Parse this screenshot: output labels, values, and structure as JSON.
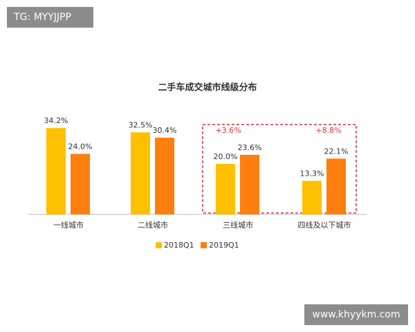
{
  "watermarks": [
    "TG: MYYJJPP",
    "www.khyykm.com"
  ],
  "chart_data": {
    "type": "bar",
    "title": "二手车成交城市线级分布",
    "categories": [
      "一线城市",
      "二线城市",
      "三线城市",
      "四线及以下城市"
    ],
    "series": [
      {
        "name": "2018Q1",
        "color": "#FFC000",
        "values": [
          34.2,
          32.5,
          20.0,
          13.3
        ],
        "value_labels": [
          "34.2%",
          "32.5%",
          "20.0%",
          "13.3%"
        ]
      },
      {
        "name": "2019Q1",
        "color": "#FF7F0E",
        "values": [
          24.0,
          30.4,
          23.6,
          22.1
        ],
        "value_labels": [
          "24.0%",
          "30.4%",
          "23.6%",
          "22.1%"
        ]
      }
    ],
    "annotations": [
      "+3.6%",
      "+8.8%"
    ],
    "annotation_color": "#E0303A"
  }
}
